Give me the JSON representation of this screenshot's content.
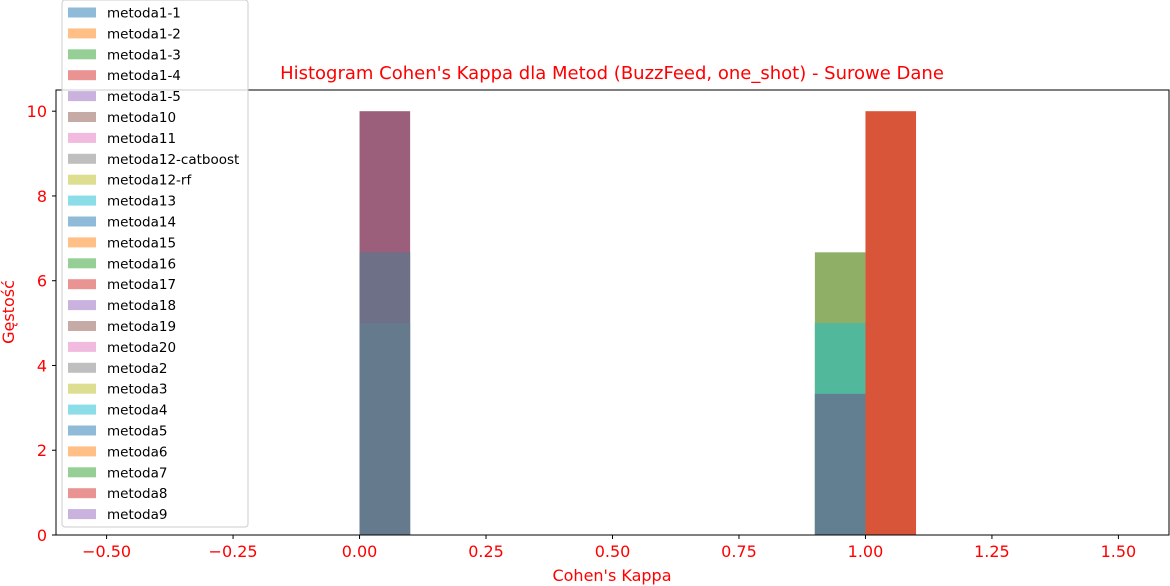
{
  "chart_data": {
    "type": "bar",
    "title": "Histogram Cohen's Kappa dla Metod (BuzzFeed, one_shot) - Surowe Dane",
    "xlabel": "Cohen's Kappa",
    "ylabel": "Gęstość",
    "xlim": [
      -0.6,
      1.6
    ],
    "ylim": [
      0,
      10.5
    ],
    "xticks": [
      "−0.50",
      "−0.25",
      "0.00",
      "0.25",
      "0.50",
      "0.75",
      "1.00",
      "1.25",
      "1.50"
    ],
    "xtick_values": [
      -0.5,
      -0.25,
      0,
      0.25,
      0.5,
      0.75,
      1.0,
      1.25,
      1.5
    ],
    "yticks": [
      "0",
      "2",
      "4",
      "6",
      "8",
      "10"
    ],
    "ytick_values": [
      0,
      2,
      4,
      6,
      8,
      10
    ],
    "legend_position": "upper-left",
    "bars": [
      {
        "x0": 0.0,
        "x1": 0.1,
        "height": 10.0,
        "color": "#9b5f7c"
      },
      {
        "x0": 0.0,
        "x1": 0.1,
        "height": 6.67,
        "color": "#6e7087"
      },
      {
        "x0": 0.0,
        "x1": 0.1,
        "height": 5.0,
        "color": "#667a8e"
      },
      {
        "x0": 0.9,
        "x1": 1.0,
        "height": 6.67,
        "color": "#8faf66"
      },
      {
        "x0": 0.9,
        "x1": 1.0,
        "height": 5.0,
        "color": "#52b89b"
      },
      {
        "x0": 0.9,
        "x1": 1.0,
        "height": 3.33,
        "color": "#617f91"
      },
      {
        "x0": 1.0,
        "x1": 1.1,
        "height": 10.0,
        "color": "#d8553a"
      }
    ],
    "series": [
      {
        "name": "metoda1-1",
        "color": "#1f77b4"
      },
      {
        "name": "metoda1-2",
        "color": "#ff7f0e"
      },
      {
        "name": "metoda1-3",
        "color": "#2ca02c"
      },
      {
        "name": "metoda1-4",
        "color": "#d62728"
      },
      {
        "name": "metoda1-5",
        "color": "#9467bd"
      },
      {
        "name": "metoda10",
        "color": "#8c564b"
      },
      {
        "name": "metoda11",
        "color": "#e377c2"
      },
      {
        "name": "metoda12-catboost",
        "color": "#7f7f7f"
      },
      {
        "name": "metoda12-rf",
        "color": "#bcbd22"
      },
      {
        "name": "metoda13",
        "color": "#17becf"
      },
      {
        "name": "metoda14",
        "color": "#1f77b4"
      },
      {
        "name": "metoda15",
        "color": "#ff7f0e"
      },
      {
        "name": "metoda16",
        "color": "#2ca02c"
      },
      {
        "name": "metoda17",
        "color": "#d62728"
      },
      {
        "name": "metoda18",
        "color": "#9467bd"
      },
      {
        "name": "metoda19",
        "color": "#8c564b"
      },
      {
        "name": "metoda20",
        "color": "#e377c2"
      },
      {
        "name": "metoda2",
        "color": "#7f7f7f"
      },
      {
        "name": "metoda3",
        "color": "#bcbd22"
      },
      {
        "name": "metoda4",
        "color": "#17becf"
      },
      {
        "name": "metoda5",
        "color": "#1f77b4"
      },
      {
        "name": "metoda6",
        "color": "#ff7f0e"
      },
      {
        "name": "metoda7",
        "color": "#2ca02c"
      },
      {
        "name": "metoda8",
        "color": "#d62728"
      },
      {
        "name": "metoda9",
        "color": "#9467bd"
      }
    ]
  }
}
